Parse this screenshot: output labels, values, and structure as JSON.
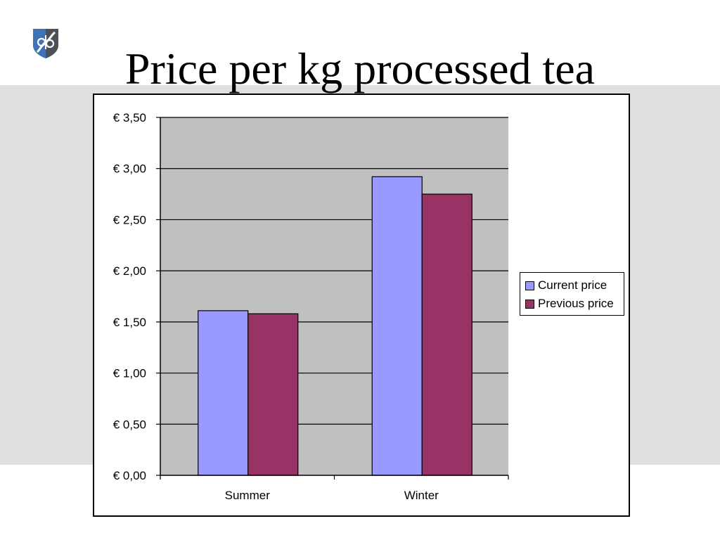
{
  "slide": {
    "title": "Price per kg processed tea"
  },
  "logo": {
    "icon": "knot-shield-logo",
    "colors": [
      "#0d4a8c",
      "#3f73b8",
      "#8c9099"
    ]
  },
  "colors": {
    "band": "#dfe0e2",
    "plot_area": "#c0c0c0",
    "current_price": "#9999ff",
    "previous_price": "#993366"
  },
  "chart_data": {
    "type": "bar",
    "title": "",
    "xlabel": "",
    "ylabel": "",
    "categories": [
      "Summer",
      "Winter"
    ],
    "series": [
      {
        "name": "Current price",
        "values": [
          1.61,
          2.92
        ],
        "color": "#9999ff"
      },
      {
        "name": "Previous price",
        "values": [
          1.58,
          2.75
        ],
        "color": "#993366"
      }
    ],
    "ylim": [
      0,
      3.5
    ],
    "yticks": [
      0,
      0.5,
      1,
      1.5,
      2,
      2.5,
      3,
      3.5
    ],
    "ytick_labels": [
      "€ 0,00",
      "€ 0,50",
      "€ 1,00",
      "€ 1,50",
      "€ 2,00",
      "€ 2,50",
      "€ 3,00",
      "€ 3,50"
    ],
    "grid": true,
    "legend_position": "right"
  }
}
